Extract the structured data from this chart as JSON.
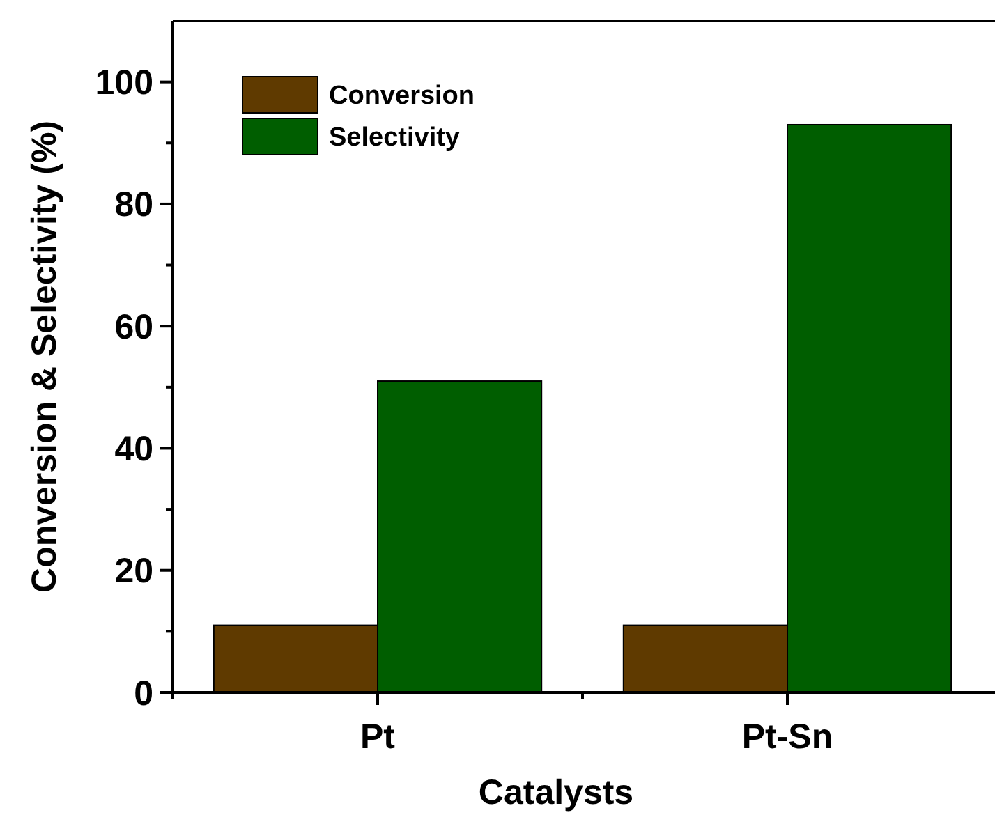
{
  "chart_data": {
    "type": "bar",
    "xlabel": "Catalysts",
    "ylabel": "Conversion & Selectivity (%)",
    "categories": [
      "Pt",
      "Pt-Sn"
    ],
    "series": [
      {
        "name": "Conversion",
        "color": "#5f3a00",
        "values": [
          11,
          11
        ]
      },
      {
        "name": "Selectivity",
        "color": "#005e00",
        "values": [
          51,
          93
        ]
      }
    ],
    "ylim": [
      0,
      110
    ],
    "yticks": [
      0,
      {
        "value": 10,
        "label": null
      },
      20,
      {
        "value": 30,
        "label": null
      },
      40,
      {
        "value": 50,
        "label": null
      },
      60,
      {
        "value": 70,
        "label": null
      },
      80,
      {
        "value": 90,
        "label": null
      },
      100
    ],
    "legend": "top left",
    "grid": false
  }
}
